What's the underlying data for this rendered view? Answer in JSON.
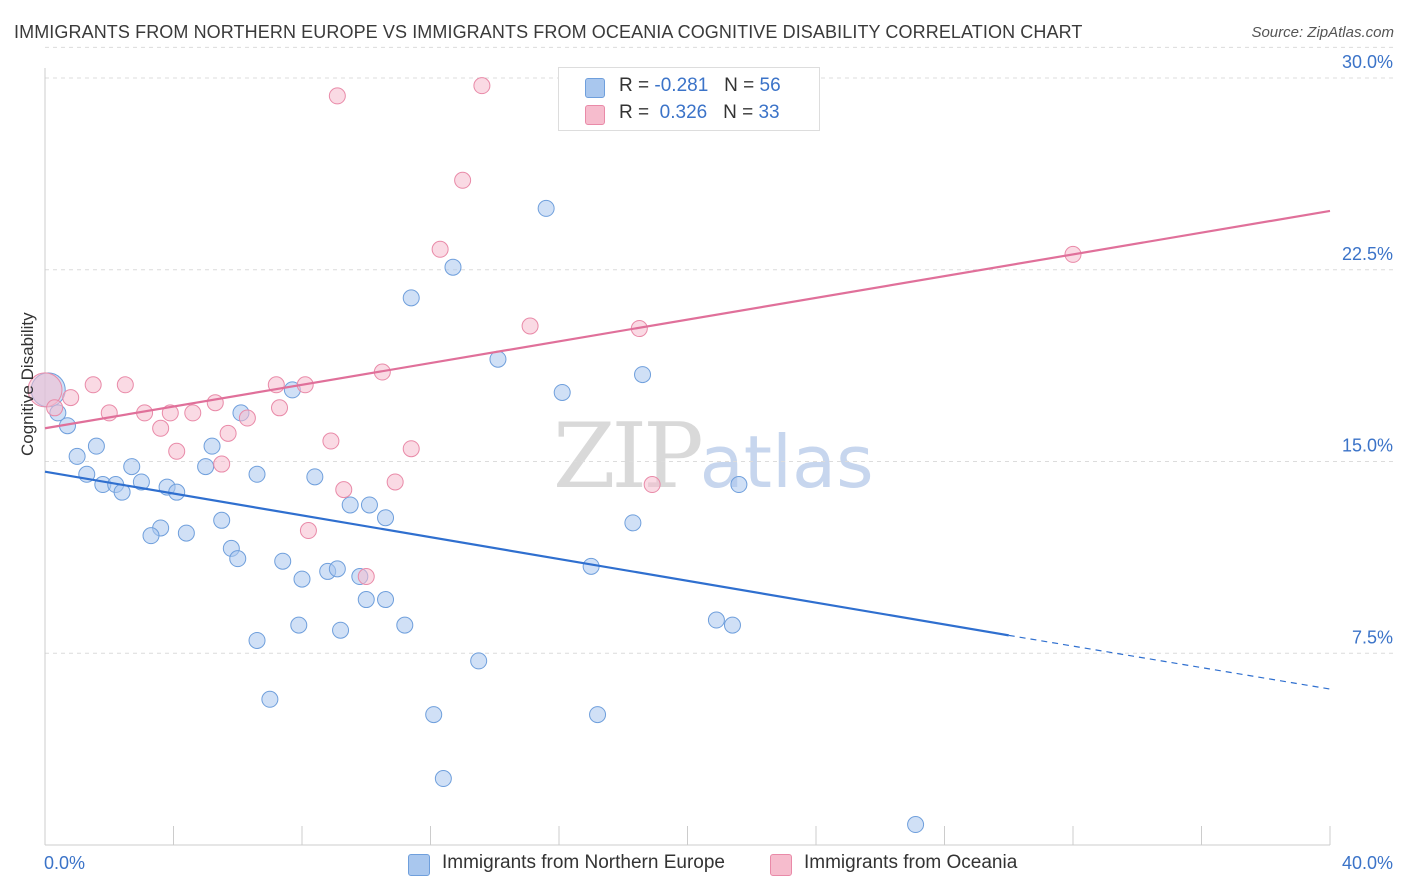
{
  "header": {
    "title": "IMMIGRANTS FROM NORTHERN EUROPE VS IMMIGRANTS FROM OCEANIA COGNITIVE DISABILITY CORRELATION CHART",
    "source": "Source: ZipAtlas.com"
  },
  "watermark": {
    "zip": "ZIP",
    "atlas": "atlas"
  },
  "legend": {
    "blue": {
      "r_label": "R =",
      "r_value": "-0.281",
      "n_label": "N =",
      "n_value": "56"
    },
    "pink": {
      "r_label": "R =",
      "r_value": "0.326",
      "n_label": "N =",
      "n_value": "33"
    }
  },
  "colors": {
    "blue_fill": "#a9c7ee",
    "blue_stroke": "#6f9fdc",
    "blue_line": "#2f6fcf",
    "pink_fill": "#f6bccd",
    "pink_stroke": "#e98aa8",
    "pink_line": "#e0709a",
    "tick_label": "#3b73c8",
    "grid": "#dcdcdc"
  },
  "chart_data": {
    "type": "scatter",
    "title": "IMMIGRANTS FROM NORTHERN EUROPE VS IMMIGRANTS FROM OCEANIA COGNITIVE DISABILITY CORRELATION CHART",
    "xlabel": "",
    "ylabel": "Cognitive Disability",
    "xlim": [
      0,
      40
    ],
    "ylim": [
      0,
      30
    ],
    "x_tick_labels": [
      "0.0%",
      "40.0%"
    ],
    "y_ticks": [
      7.5,
      15.0,
      22.5,
      30.0
    ],
    "y_tick_labels": [
      "7.5%",
      "15.0%",
      "22.5%",
      "30.0%"
    ],
    "grid": "horizontal dashed",
    "legend_position": "top-center",
    "series": [
      {
        "name": "Immigrants from Northern Europe",
        "color": "#a9c7ee",
        "points": [
          [
            0.1,
            17.8
          ],
          [
            0.4,
            16.9
          ],
          [
            0.7,
            16.4
          ],
          [
            1.6,
            15.6
          ],
          [
            1.0,
            15.2
          ],
          [
            1.3,
            14.5
          ],
          [
            2.7,
            14.8
          ],
          [
            1.8,
            14.1
          ],
          [
            2.2,
            14.1
          ],
          [
            2.4,
            13.8
          ],
          [
            3.0,
            14.2
          ],
          [
            3.8,
            14.0
          ],
          [
            4.1,
            13.8
          ],
          [
            5.0,
            14.8
          ],
          [
            5.5,
            12.7
          ],
          [
            3.6,
            12.4
          ],
          [
            3.3,
            12.1
          ],
          [
            4.4,
            12.2
          ],
          [
            5.2,
            15.6
          ],
          [
            6.1,
            16.9
          ],
          [
            6.6,
            14.5
          ],
          [
            7.7,
            17.8
          ],
          [
            8.4,
            14.4
          ],
          [
            5.8,
            11.6
          ],
          [
            6.0,
            11.2
          ],
          [
            7.4,
            11.1
          ],
          [
            8.0,
            10.4
          ],
          [
            8.8,
            10.7
          ],
          [
            9.1,
            10.8
          ],
          [
            9.5,
            13.3
          ],
          [
            10.1,
            13.3
          ],
          [
            10.6,
            12.8
          ],
          [
            9.8,
            10.5
          ],
          [
            10.0,
            9.6
          ],
          [
            10.6,
            9.6
          ],
          [
            9.2,
            8.4
          ],
          [
            7.9,
            8.6
          ],
          [
            11.2,
            8.6
          ],
          [
            6.6,
            8.0
          ],
          [
            7.0,
            5.7
          ],
          [
            12.1,
            5.1
          ],
          [
            12.4,
            2.6
          ],
          [
            13.5,
            7.2
          ],
          [
            11.4,
            21.4
          ],
          [
            12.7,
            22.6
          ],
          [
            14.1,
            19.0
          ],
          [
            15.6,
            24.9
          ],
          [
            16.1,
            17.7
          ],
          [
            17.0,
            10.9
          ],
          [
            18.3,
            12.6
          ],
          [
            18.6,
            18.4
          ],
          [
            20.9,
            8.8
          ],
          [
            21.4,
            8.6
          ],
          [
            21.6,
            14.1
          ],
          [
            17.2,
            5.1
          ],
          [
            27.1,
            0.8
          ]
        ]
      },
      {
        "name": "Immigrants from Oceania",
        "color": "#f6bccd",
        "points": [
          [
            0.0,
            17.8
          ],
          [
            0.3,
            17.1
          ],
          [
            0.8,
            17.5
          ],
          [
            1.5,
            18.0
          ],
          [
            2.0,
            16.9
          ],
          [
            2.5,
            18.0
          ],
          [
            3.1,
            16.9
          ],
          [
            3.6,
            16.3
          ],
          [
            3.9,
            16.9
          ],
          [
            4.1,
            15.4
          ],
          [
            4.6,
            16.9
          ],
          [
            5.3,
            17.3
          ],
          [
            5.5,
            14.9
          ],
          [
            5.7,
            16.1
          ],
          [
            6.3,
            16.7
          ],
          [
            7.2,
            18.0
          ],
          [
            7.3,
            17.1
          ],
          [
            8.1,
            18.0
          ],
          [
            8.2,
            12.3
          ],
          [
            8.9,
            15.8
          ],
          [
            9.3,
            13.9
          ],
          [
            10.0,
            10.5
          ],
          [
            10.5,
            18.5
          ],
          [
            10.9,
            14.2
          ],
          [
            11.4,
            15.5
          ],
          [
            12.3,
            23.3
          ],
          [
            13.0,
            26.0
          ],
          [
            13.6,
            29.7
          ],
          [
            9.1,
            29.3
          ],
          [
            15.1,
            20.3
          ],
          [
            18.5,
            20.2
          ],
          [
            18.9,
            14.1
          ],
          [
            32.0,
            23.1
          ]
        ]
      }
    ],
    "trend_lines": [
      {
        "series": "Immigrants from Northern Europe",
        "from": [
          0,
          14.6
        ],
        "to": [
          30.0,
          8.2
        ],
        "dashed_to": [
          40,
          6.1
        ]
      },
      {
        "series": "Immigrants from Oceania",
        "from": [
          0,
          16.3
        ],
        "to": [
          40,
          24.8
        ]
      }
    ]
  }
}
